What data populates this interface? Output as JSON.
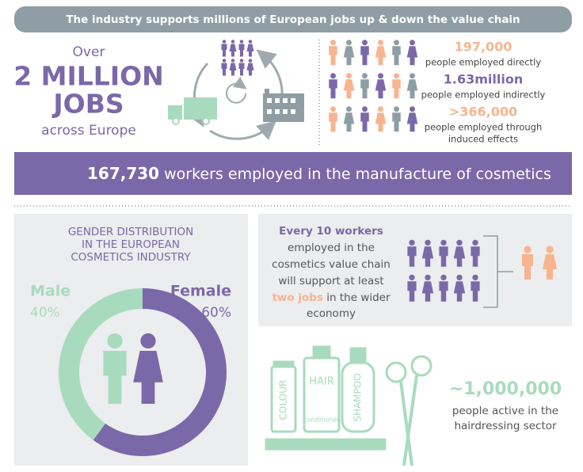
{
  "banner": "The industry supports millions of European jobs up & down the value chain",
  "jobs_summary": {
    "over": "Over",
    "headline": "2 MILLION",
    "jobs": "JOBS",
    "region": "across Europe"
  },
  "employment": [
    {
      "value": "197,000",
      "label": [
        "people employed directly"
      ]
    },
    {
      "value": "1.63million",
      "label": [
        "people employed indirectly"
      ]
    },
    {
      "value": ">366,000",
      "label": [
        "people employed through",
        "induced effects"
      ]
    }
  ],
  "manufacture": {
    "value": "167,730",
    "label": "workers employed in the manufacture of cosmetics"
  },
  "gender": {
    "title": [
      "GENDER DISTRIBUTION",
      "IN THE EUROPEAN",
      "COSMETICS INDUSTRY"
    ],
    "segments": [
      {
        "name": "Male",
        "value": 40,
        "label": "40%",
        "color": "#a8dbbd"
      },
      {
        "name": "Female",
        "value": 60,
        "label": "60%",
        "color": "#7b68a8"
      }
    ]
  },
  "value_chain": {
    "lines": [
      "Every 10 workers",
      "employed in the",
      "cosmetics value chain",
      "will support at least"
    ],
    "highlight": "two jobs",
    "rest": " in the wider",
    "last": "economy"
  },
  "hairdressing": {
    "value": "~1,000,000",
    "label": [
      "people active in the",
      "hairdressing sector"
    ]
  },
  "product_labels": [
    "COLOUR",
    "HAIR",
    "conditioner",
    "SHAMPOO"
  ]
}
